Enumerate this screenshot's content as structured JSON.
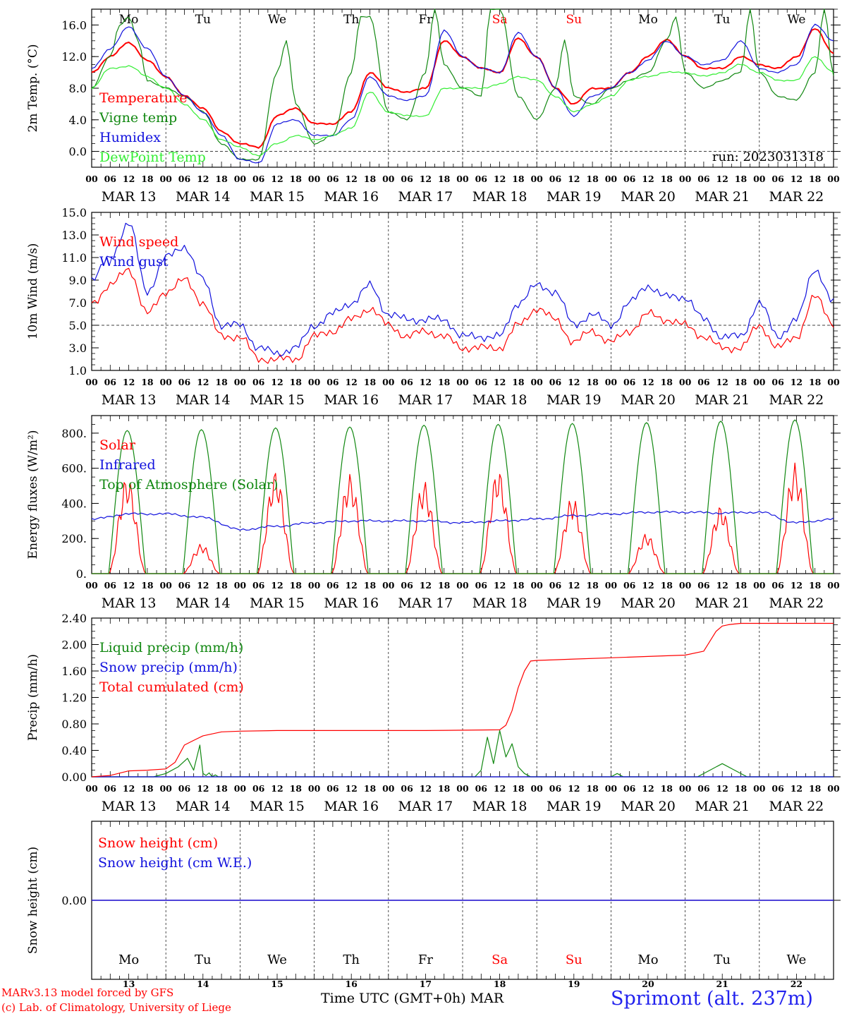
{
  "footer": {
    "credit_line1": "MARv3.13 model forced by GFS",
    "credit_line2": "(c) Lab. of Climatology, University of Liege",
    "x_axis_title": "Time UTC (GMT+0h) MAR",
    "station": "Sprimont (alt. 237m)"
  },
  "colors": {
    "red": "#ff0000",
    "green": "#118811",
    "blue": "#1111dd",
    "lightgreen": "#33ee33",
    "purple": "#7030a0",
    "weekend": "#ff0000"
  },
  "chart_data": [
    {
      "type": "line",
      "ylabel": "2m Temp. (°C)",
      "ylim": [
        -2.0,
        18.0
      ],
      "yticks": [
        0.0,
        4.0,
        8.0,
        12.0,
        16.0
      ],
      "ytick_labels": [
        "0.0",
        "4.0",
        "8.0",
        "12.0",
        "16.0"
      ],
      "reference_line": 0.0,
      "annotation": "run: 2023031318",
      "day_labels": [
        "Mo",
        "Tu",
        "We",
        "Th",
        "Fr",
        "Sa",
        "Su",
        "Mo",
        "Tu",
        "We"
      ],
      "series": [
        {
          "name": "Temperature",
          "color": "red",
          "x_hours": [
            0,
            6,
            12,
            18,
            24,
            30,
            36,
            42,
            48,
            54,
            60,
            66,
            72,
            78,
            84,
            90,
            96,
            102,
            108,
            114,
            120,
            126,
            132,
            138,
            144,
            150,
            156,
            162,
            168,
            174,
            180,
            186,
            192,
            198,
            204,
            210,
            216,
            222,
            228,
            234,
            240
          ],
          "values": [
            10,
            12,
            13.8,
            11.5,
            9.5,
            7,
            5.5,
            2.5,
            1,
            0.5,
            4.5,
            5.5,
            3.5,
            3.5,
            5,
            10,
            8,
            7.5,
            8,
            14,
            12,
            10.5,
            10,
            14.3,
            12,
            8,
            6,
            8,
            8,
            10,
            12,
            14.2,
            12,
            10.5,
            10.5,
            12,
            11,
            10.5,
            12,
            15.5,
            12.5
          ]
        },
        {
          "name": "Vigne temp",
          "color": "green",
          "x_hours": [
            0,
            6,
            9,
            12,
            15,
            18,
            24,
            30,
            36,
            42,
            48,
            54,
            60,
            63,
            66,
            72,
            78,
            84,
            87,
            90,
            96,
            102,
            108,
            111,
            114,
            120,
            126,
            129,
            132,
            138,
            144,
            150,
            153,
            156,
            162,
            168,
            174,
            180,
            186,
            189,
            192,
            198,
            204,
            210,
            213,
            216,
            222,
            228,
            234,
            237,
            240
          ],
          "values": [
            8,
            12,
            16,
            17,
            14,
            9,
            8,
            7,
            5,
            1,
            -1,
            -1,
            10,
            14,
            6,
            1,
            2,
            10,
            17,
            17,
            5,
            4,
            10,
            18,
            11,
            8,
            7,
            18,
            18,
            7,
            4,
            8,
            14,
            7,
            6,
            8,
            9,
            10,
            14,
            17,
            10,
            8,
            9,
            10,
            18,
            10,
            7,
            6.5,
            10,
            18,
            9.5
          ]
        },
        {
          "name": "Humidex",
          "color": "blue",
          "x_hours": [
            0,
            6,
            12,
            18,
            24,
            30,
            36,
            42,
            48,
            54,
            60,
            66,
            72,
            78,
            84,
            90,
            96,
            102,
            108,
            114,
            120,
            126,
            132,
            138,
            144,
            150,
            156,
            162,
            168,
            174,
            180,
            186,
            192,
            198,
            204,
            210,
            216,
            222,
            228,
            234,
            240
          ],
          "values": [
            10.5,
            13,
            15.8,
            13,
            9.5,
            7,
            5,
            2,
            -1,
            -1.5,
            3.5,
            4,
            2,
            2,
            4,
            9.5,
            7,
            6.5,
            7,
            15.3,
            12,
            10.5,
            10,
            15,
            12,
            8,
            4.5,
            7,
            8,
            10,
            11.5,
            14,
            12,
            11,
            11.5,
            14,
            10.5,
            10,
            11,
            16,
            14
          ]
        },
        {
          "name": "DewPoint Temp",
          "color": "lightgreen",
          "x_hours": [
            0,
            6,
            12,
            18,
            24,
            30,
            36,
            42,
            48,
            54,
            60,
            66,
            72,
            78,
            84,
            90,
            96,
            102,
            108,
            114,
            120,
            126,
            132,
            138,
            144,
            150,
            156,
            162,
            168,
            174,
            180,
            186,
            192,
            198,
            204,
            210,
            216,
            222,
            228,
            234,
            240
          ],
          "values": [
            8,
            10.5,
            10.8,
            9.5,
            8,
            6,
            4,
            1.5,
            0.5,
            -0.5,
            1,
            2,
            1.5,
            2,
            3,
            7.5,
            5,
            4.5,
            4.5,
            8,
            8,
            8,
            8.5,
            9.5,
            9,
            7,
            5,
            6,
            7,
            9,
            9.5,
            10,
            10,
            9.5,
            10,
            11,
            10,
            9,
            9,
            12,
            10
          ]
        }
      ]
    },
    {
      "type": "line",
      "ylabel": "10m Wind (m/s)",
      "ylim": [
        1.0,
        15.0
      ],
      "yticks": [
        1.0,
        3.0,
        5.0,
        7.0,
        9.0,
        11.0,
        13.0,
        15.0
      ],
      "ytick_labels": [
        "1.0",
        "3.0",
        "5.0",
        "7.0",
        "9.0",
        "11.0",
        "13.0",
        "15.0"
      ],
      "reference_line": 5.0,
      "series": [
        {
          "name": "Wind speed",
          "color": "red",
          "x_hours": [
            0,
            6,
            12,
            18,
            24,
            30,
            36,
            42,
            48,
            54,
            60,
            66,
            72,
            78,
            84,
            90,
            96,
            102,
            108,
            114,
            120,
            126,
            132,
            138,
            144,
            150,
            156,
            162,
            168,
            174,
            180,
            186,
            192,
            198,
            204,
            210,
            216,
            222,
            228,
            234,
            240
          ],
          "values": [
            7,
            8.5,
            10,
            6,
            8,
            9,
            7,
            4,
            4,
            2,
            2,
            2,
            4,
            4.5,
            5.5,
            6.5,
            5,
            4,
            4.5,
            4,
            3,
            3,
            3,
            5,
            6.5,
            5.5,
            3.5,
            4.5,
            3.5,
            4.5,
            6,
            5.5,
            5,
            4,
            3,
            3,
            5,
            3,
            4,
            7.5,
            5.2
          ]
        },
        {
          "name": "Wind gust",
          "color": "blue",
          "x_hours": [
            0,
            6,
            12,
            18,
            24,
            30,
            36,
            42,
            48,
            54,
            60,
            66,
            72,
            78,
            84,
            90,
            96,
            102,
            108,
            114,
            120,
            126,
            132,
            138,
            144,
            150,
            156,
            162,
            168,
            174,
            180,
            186,
            192,
            198,
            204,
            210,
            216,
            222,
            228,
            234,
            240
          ],
          "values": [
            9,
            11,
            14,
            8,
            11,
            12,
            9,
            5,
            5,
            3,
            2.5,
            3,
            5,
            6,
            7,
            8.5,
            6,
            5.5,
            5.5,
            5.5,
            4,
            4,
            4,
            7,
            8.5,
            8,
            5,
            6,
            5,
            7,
            8.5,
            7.5,
            7.5,
            5.5,
            4,
            4,
            7,
            4,
            5.5,
            10,
            7
          ]
        }
      ]
    },
    {
      "type": "line",
      "ylabel": "Energy fluxes (W/m²)",
      "ylim": [
        0,
        900
      ],
      "yticks": [
        0,
        200,
        400,
        600,
        800
      ],
      "ytick_labels": [
        "0.",
        "200.",
        "400.",
        "600.",
        "800."
      ],
      "series": [
        {
          "name": "Solar",
          "color": "red",
          "daily_peaks": [
            560,
            170,
            590,
            570,
            530,
            600,
            440,
            230,
            390,
            630
          ]
        },
        {
          "name": "Infrared",
          "color": "blue",
          "x_hours": [
            0,
            12,
            24,
            36,
            48,
            60,
            72,
            84,
            96,
            108,
            120,
            132,
            144,
            156,
            168,
            180,
            192,
            204,
            216,
            228,
            240
          ],
          "values": [
            310,
            340,
            340,
            320,
            250,
            270,
            290,
            300,
            300,
            300,
            290,
            300,
            310,
            330,
            340,
            350,
            350,
            345,
            350,
            290,
            310
          ]
        },
        {
          "name": "Top of Atmosphere (Solar)",
          "color": "green",
          "daily_peaks": [
            815,
            820,
            830,
            835,
            845,
            850,
            855,
            860,
            868,
            875
          ]
        }
      ]
    },
    {
      "type": "line",
      "ylabel": "Precip (mm/h)",
      "ylim": [
        0.0,
        2.4
      ],
      "yticks": [
        0.0,
        0.4,
        0.8,
        1.2,
        1.6,
        2.0,
        2.4
      ],
      "ytick_labels": [
        "0.00",
        "0.40",
        "0.80",
        "1.20",
        "1.60",
        "2.00",
        "2.40"
      ],
      "series": [
        {
          "name": "Liquid precip (mm/h)",
          "color": "green",
          "x_hours": [
            0,
            20,
            24,
            28,
            31,
            33,
            35,
            36,
            37,
            38,
            39,
            40,
            41,
            42,
            46,
            124,
            126,
            128,
            130,
            132,
            134,
            136,
            138,
            140,
            142,
            144,
            168,
            170,
            172,
            180,
            196,
            200,
            204,
            208,
            212,
            240
          ],
          "values": [
            0,
            0,
            0.05,
            0.15,
            0.28,
            0.1,
            0.48,
            0.05,
            0.02,
            0.06,
            0,
            0.03,
            0,
            0,
            0,
            0,
            0.1,
            0.6,
            0.2,
            0.7,
            0.3,
            0.5,
            0.15,
            0.05,
            0,
            0,
            0,
            0.05,
            0,
            0,
            0,
            0.1,
            0.2,
            0.1,
            0,
            0
          ]
        },
        {
          "name": "Snow precip (mm/h)",
          "color": "blue",
          "x_hours": [
            0,
            240
          ],
          "values": [
            0,
            0
          ]
        },
        {
          "name": "Total cumulated (cm)",
          "color": "red",
          "x_hours": [
            0,
            6,
            12,
            18,
            24,
            27,
            30,
            33,
            36,
            42,
            48,
            60,
            84,
            108,
            132,
            134,
            136,
            138,
            140,
            142,
            144,
            150,
            156,
            168,
            180,
            192,
            198,
            200,
            202,
            204,
            206,
            208,
            210,
            240
          ],
          "values": [
            0,
            0.02,
            0.09,
            0.1,
            0.12,
            0.22,
            0.48,
            0.55,
            0.62,
            0.68,
            0.69,
            0.7,
            0.7,
            0.7,
            0.71,
            0.78,
            1.0,
            1.35,
            1.6,
            1.75,
            1.76,
            1.77,
            1.78,
            1.8,
            1.82,
            1.84,
            1.9,
            2.05,
            2.2,
            2.28,
            2.3,
            2.31,
            2.32,
            2.32
          ]
        }
      ]
    },
    {
      "type": "line",
      "ylabel": "Snow height (cm)",
      "ylim": [
        -1.0,
        1.0
      ],
      "yticks": [
        0.0
      ],
      "ytick_labels": [
        "0.00"
      ],
      "day_labels": [
        "Mo",
        "Tu",
        "We",
        "Th",
        "Fr",
        "Sa",
        "Su",
        "Mo",
        "Tu",
        "We"
      ],
      "day_numbers": [
        "13",
        "14",
        "15",
        "16",
        "17",
        "18",
        "19",
        "20",
        "21",
        "22"
      ],
      "series": [
        {
          "name": "Snow height (cm)",
          "color": "red",
          "x_hours": [
            0,
            240
          ],
          "values": [
            0,
            0
          ]
        },
        {
          "name": "Snow height (cm W.E.)",
          "color": "blue",
          "x_hours": [
            0,
            240
          ],
          "values": [
            0,
            0
          ]
        }
      ]
    }
  ],
  "x_axis": {
    "hour_labels": [
      "00",
      "06",
      "12",
      "18"
    ],
    "date_labels": [
      "MAR 13",
      "MAR 14",
      "MAR 15",
      "MAR 16",
      "MAR 17",
      "MAR 18",
      "MAR 19",
      "MAR 20",
      "MAR 21",
      "MAR 22"
    ],
    "weekend_days": [
      "Sa",
      "Su"
    ]
  }
}
